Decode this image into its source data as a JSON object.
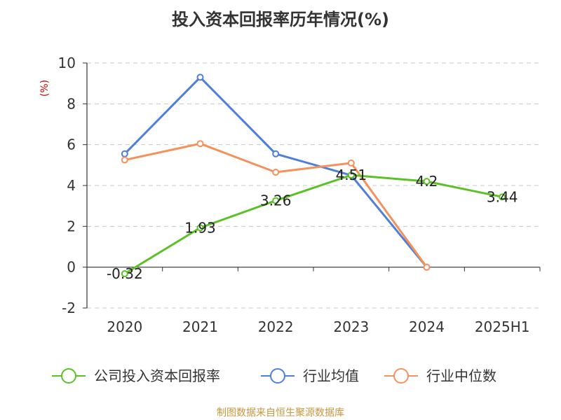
{
  "chart_data": {
    "type": "line",
    "title": "投入资本回报率历年情况(%)",
    "ylabel": "(%)",
    "ylim": [
      -2,
      10
    ],
    "yticks": [
      "-2",
      "0",
      "2",
      "4",
      "6",
      "8",
      "10"
    ],
    "categories": [
      "2020",
      "2021",
      "2022",
      "2023",
      "2024",
      "2025H1"
    ],
    "grid": true,
    "legend_position": "bottom",
    "series": [
      {
        "name": "公司投入资本回报率",
        "color": "#5cc128",
        "values": [
          -0.32,
          1.93,
          3.26,
          4.51,
          4.2,
          3.44
        ],
        "labels": [
          "-0.32",
          "1.93",
          "3.26",
          "4.51",
          "4.2",
          "3.44"
        ]
      },
      {
        "name": "行业均值",
        "color": "#4f7fdb",
        "values": [
          5.55,
          9.3,
          5.55,
          4.5,
          0.0,
          null
        ]
      },
      {
        "name": "行业中位数",
        "color": "#f5915b",
        "values": [
          5.25,
          6.05,
          4.65,
          5.1,
          0.0,
          null
        ]
      }
    ]
  },
  "footer": {
    "source": "制图数据来自恒生聚源数据库"
  }
}
